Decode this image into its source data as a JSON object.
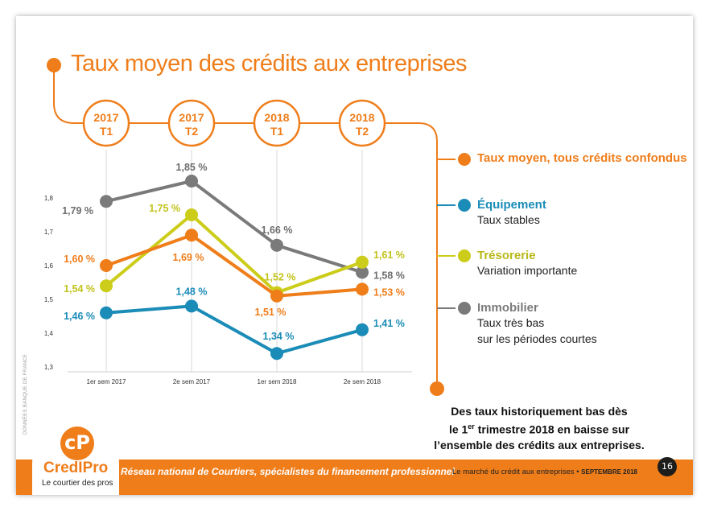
{
  "title": "Taux moyen des crédits aux entreprises",
  "periods": [
    {
      "year": "2017",
      "quarter": "T1"
    },
    {
      "year": "2017",
      "quarter": "T2"
    },
    {
      "year": "2018",
      "quarter": "T1"
    },
    {
      "year": "2018",
      "quarter": "T2"
    }
  ],
  "legend": {
    "main": "Taux moyen, tous crédits confondus",
    "items": [
      {
        "title": "Équipement",
        "desc": "Taux stables",
        "color": "#1a8cb7"
      },
      {
        "title": "Trésorerie",
        "desc": "Variation importante",
        "color": "#cccc1a"
      },
      {
        "title": "Immobilier",
        "desc": "Taux très bas\nsur les périodes courtes",
        "color": "#7a7a7a"
      }
    ]
  },
  "conclusion": {
    "line1": "Des taux historiquement bas dès",
    "line2_pre": "le 1",
    "line2_sup": "er",
    "line2_post": " trimestre 2018 en baisse sur",
    "line3": "l’ensemble des crédits aux entreprises."
  },
  "source": "DONNÉES BANQUE DE FRANCE",
  "footer": {
    "tagline": "Réseau national de Courtiers, spécialistes du financement professionnel",
    "right_text": "Le marché du crédit aux entreprises •",
    "right_date": "SEPTEMBRE 2018",
    "page": "16"
  },
  "logo": {
    "name": "CredIPro",
    "tagline": "Le courtier des pros"
  },
  "colors": {
    "orange": "#ef7d1a",
    "blue": "#1a8cb7",
    "yellow": "#cccc1a",
    "gray": "#7a7a7a"
  },
  "chart_data": {
    "type": "line",
    "categories": [
      "1er sem 2017",
      "2e sem 2017",
      "1er sem 2018",
      "2e sem 2018"
    ],
    "ylim": [
      1.3,
      1.8
    ],
    "yticks": [
      "1,3",
      "1,4",
      "1,5",
      "1,6",
      "1,7",
      "1,8"
    ],
    "grid": true,
    "series": [
      {
        "key": "gray",
        "values": [
          1.79,
          1.85,
          1.66,
          1.58
        ],
        "labels": [
          "1,79 %",
          "1,85 %",
          "1,66 %",
          "1,58 %"
        ],
        "color": "#7a7a7a"
      },
      {
        "key": "yellow",
        "values": [
          1.54,
          1.75,
          1.52,
          1.61
        ],
        "labels": [
          "1,54 %",
          "1,75 %",
          "1,52 %",
          "1,61 %"
        ],
        "color": "#cccc1a"
      },
      {
        "key": "orange",
        "values": [
          1.6,
          1.69,
          1.51,
          1.53
        ],
        "labels": [
          "1,60 %",
          "1,69 %",
          "1,51 %",
          "1,53 %"
        ],
        "color": "#ef7d1a"
      },
      {
        "key": "blue",
        "values": [
          1.46,
          1.48,
          1.34,
          1.41
        ],
        "labels": [
          "1,46 %",
          "1,48 %",
          "1,34 %",
          "1,41 %"
        ],
        "color": "#1a8cb7"
      }
    ]
  }
}
